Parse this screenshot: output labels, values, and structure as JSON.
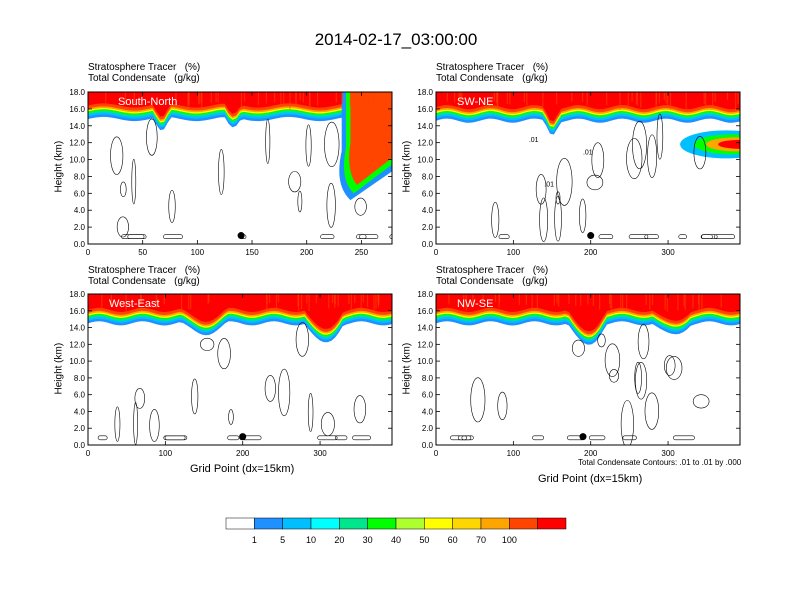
{
  "title": "2014-02-17_03:00:00",
  "panel_title_line1": "Stratosphere Tracer   (%)",
  "panel_title_line2": "Total Condensate   (g/kg)",
  "y_axis_label": "Height (km)",
  "x_axis_label": "Grid Point (dx=15km)",
  "contour_note": "Total Condensate Contours: .01 to .01 by .000",
  "colors": {
    "levels": [
      "#ffffff",
      "#1e90ff",
      "#00bfff",
      "#00ffff",
      "#00e68c",
      "#00ff00",
      "#adff2f",
      "#ffff00",
      "#ffd700",
      "#ffa500",
      "#ff4500",
      "#ff0000"
    ]
  },
  "chart_data": [
    {
      "type": "heatmap",
      "region": "South-North",
      "title": "Stratosphere Tracer (%) / Total Condensate (g/kg)",
      "xlabel": "",
      "ylabel": "Height (km)",
      "xlim": [
        0,
        278
      ],
      "ylim": [
        0,
        18
      ],
      "x_ticks": [
        0,
        50,
        100,
        150,
        200,
        250
      ],
      "y_ticks": [
        "0.0",
        "2.0",
        "4.0",
        "6.0",
        "8.0",
        "10.0",
        "12.0",
        "14.0",
        "16.0",
        "18.0"
      ],
      "contour_labels": [],
      "marker_x": 140,
      "tropopause_km": 15.8
    },
    {
      "type": "heatmap",
      "region": "SW-NE",
      "title": "Stratosphere Tracer (%) / Total Condensate (g/kg)",
      "xlabel": "",
      "ylabel": "Height (km)",
      "xlim": [
        0,
        393
      ],
      "ylim": [
        0,
        18
      ],
      "x_ticks": [
        0,
        100,
        200,
        300
      ],
      "y_ticks": [
        "0.0",
        "2.0",
        "4.0",
        "6.0",
        "8.0",
        "10.0",
        "12.0",
        "14.0",
        "16.0",
        "18.0"
      ],
      "contour_labels": [
        ".01",
        ".01",
        ".01"
      ],
      "marker_x": 200,
      "tropopause_km": 15.6
    },
    {
      "type": "heatmap",
      "region": "West-East",
      "title": "Stratosphere Tracer (%) / Total Condensate (g/kg)",
      "xlabel": "Grid Point (dx=15km)",
      "ylabel": "Height (km)",
      "xlim": [
        0,
        393
      ],
      "ylim": [
        0,
        18
      ],
      "x_ticks": [
        0,
        100,
        200,
        300
      ],
      "y_ticks": [
        "0.0",
        "2.0",
        "4.0",
        "6.0",
        "8.0",
        "10.0",
        "12.0",
        "14.0",
        "16.0",
        "18.0"
      ],
      "contour_labels": [],
      "marker_x": 200,
      "tropopause_km": 15.5
    },
    {
      "type": "heatmap",
      "region": "NW-SE",
      "title": "Stratosphere Tracer (%) / Total Condensate (g/kg)",
      "xlabel": "Grid Point (dx=15km)",
      "ylabel": "Height (km)",
      "xlim": [
        0,
        393
      ],
      "ylim": [
        0,
        18
      ],
      "x_ticks": [
        0,
        100,
        200,
        300
      ],
      "y_ticks": [
        "0.0",
        "2.0",
        "4.0",
        "6.0",
        "8.0",
        "10.0",
        "12.0",
        "14.0",
        "16.0",
        "18.0"
      ],
      "contour_labels": [],
      "marker_x": 190,
      "tropopause_km": 15.5
    }
  ],
  "colorbar": {
    "labels": [
      "1",
      "5",
      "10",
      "20",
      "30",
      "40",
      "50",
      "60",
      "70",
      "100"
    ]
  }
}
